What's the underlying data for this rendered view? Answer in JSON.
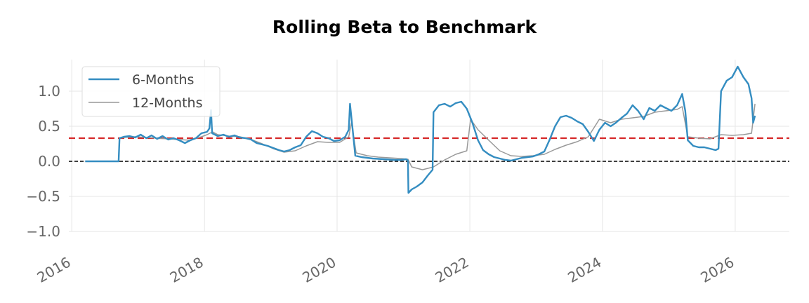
{
  "chart_data": {
    "type": "line",
    "title": "Rolling Beta to Benchmark",
    "xlabel": "",
    "ylabel": "",
    "x_axis": {
      "kind": "date",
      "range": [
        "2015-12-16",
        "2026-10-26"
      ],
      "ticks": [
        "2016",
        "2018",
        "2020",
        "2022",
        "2024",
        "2026"
      ]
    },
    "y_axis": {
      "range": [
        -1.0,
        1.45
      ],
      "ticks": [
        "1.0",
        "0.5",
        "0.0",
        "−0.5",
        "−1.0"
      ],
      "tick_values": [
        1.0,
        0.5,
        0.0,
        -0.5,
        -1.0
      ]
    },
    "grid": true,
    "legend_position": "upper-left",
    "reference_lines": [
      {
        "y": 0.33,
        "style": "dashed",
        "color": "#d62728"
      },
      {
        "y": 0.0,
        "style": "dashed",
        "color": "#000000"
      }
    ],
    "series": [
      {
        "name": "6-Months",
        "color": "#348dc1",
        "points": [
          [
            "2016-03-15",
            0
          ],
          [
            "2016-09-15",
            0
          ],
          [
            "2016-09-20",
            0.33
          ],
          [
            "2016-10-15",
            0.35
          ],
          [
            "2016-11-15",
            0.36
          ],
          [
            "2016-12-15",
            0.34
          ],
          [
            "2017-01-15",
            0.38
          ],
          [
            "2017-02-15",
            0.33
          ],
          [
            "2017-03-15",
            0.37
          ],
          [
            "2017-04-15",
            0.32
          ],
          [
            "2017-05-15",
            0.36
          ],
          [
            "2017-06-15",
            0.31
          ],
          [
            "2017-07-15",
            0.33
          ],
          [
            "2017-08-15",
            0.3
          ],
          [
            "2017-09-15",
            0.26
          ],
          [
            "2017-10-15",
            0.3
          ],
          [
            "2017-11-15",
            0.33
          ],
          [
            "2017-12-15",
            0.4
          ],
          [
            "2018-01-15",
            0.42
          ],
          [
            "2018-01-28",
            0.47
          ],
          [
            "2018-02-06",
            0.73
          ],
          [
            "2018-02-12",
            0.4
          ],
          [
            "2018-03-15",
            0.36
          ],
          [
            "2018-04-15",
            0.38
          ],
          [
            "2018-05-15",
            0.35
          ],
          [
            "2018-06-15",
            0.37
          ],
          [
            "2018-07-15",
            0.34
          ],
          [
            "2018-08-15",
            0.33
          ],
          [
            "2018-09-15",
            0.31
          ],
          [
            "2018-10-15",
            0.26
          ],
          [
            "2018-11-15",
            0.24
          ],
          [
            "2018-12-15",
            0.22
          ],
          [
            "2019-01-15",
            0.19
          ],
          [
            "2019-02-15",
            0.16
          ],
          [
            "2019-03-15",
            0.14
          ],
          [
            "2019-04-15",
            0.16
          ],
          [
            "2019-05-15",
            0.2
          ],
          [
            "2019-06-15",
            0.23
          ],
          [
            "2019-07-15",
            0.35
          ],
          [
            "2019-08-15",
            0.43
          ],
          [
            "2019-09-15",
            0.4
          ],
          [
            "2019-10-15",
            0.35
          ],
          [
            "2019-11-15",
            0.33
          ],
          [
            "2019-12-15",
            0.29
          ],
          [
            "2020-01-15",
            0.3
          ],
          [
            "2020-02-15",
            0.35
          ],
          [
            "2020-03-05",
            0.45
          ],
          [
            "2020-03-12",
            0.82
          ],
          [
            "2020-03-25",
            0.5
          ],
          [
            "2020-04-10",
            0.08
          ],
          [
            "2020-05-15",
            0.06
          ],
          [
            "2020-07-15",
            0.04
          ],
          [
            "2020-09-15",
            0.03
          ],
          [
            "2020-11-15",
            0.02
          ],
          [
            "2020-12-15",
            0.02
          ],
          [
            "2021-01-15",
            0.03
          ],
          [
            "2021-01-25",
            0.01
          ],
          [
            "2021-01-28",
            -0.45
          ],
          [
            "2021-02-15",
            -0.4
          ],
          [
            "2021-03-15",
            -0.36
          ],
          [
            "2021-04-15",
            -0.3
          ],
          [
            "2021-05-15",
            -0.2
          ],
          [
            "2021-06-10",
            -0.12
          ],
          [
            "2021-06-15",
            0.7
          ],
          [
            "2021-07-15",
            0.8
          ],
          [
            "2021-08-15",
            0.82
          ],
          [
            "2021-09-15",
            0.78
          ],
          [
            "2021-10-15",
            0.83
          ],
          [
            "2021-11-15",
            0.85
          ],
          [
            "2021-12-15",
            0.75
          ],
          [
            "2022-01-15",
            0.55
          ],
          [
            "2022-02-15",
            0.3
          ],
          [
            "2022-03-15",
            0.16
          ],
          [
            "2022-04-15",
            0.1
          ],
          [
            "2022-05-15",
            0.06
          ],
          [
            "2022-06-15",
            0.04
          ],
          [
            "2022-07-15",
            0.02
          ],
          [
            "2022-08-15",
            0.01
          ],
          [
            "2022-09-15",
            0.03
          ],
          [
            "2022-10-15",
            0.05
          ],
          [
            "2022-11-15",
            0.06
          ],
          [
            "2022-12-15",
            0.07
          ],
          [
            "2023-01-15",
            0.1
          ],
          [
            "2023-02-15",
            0.14
          ],
          [
            "2023-03-15",
            0.3
          ],
          [
            "2023-04-15",
            0.5
          ],
          [
            "2023-05-15",
            0.63
          ],
          [
            "2023-06-15",
            0.65
          ],
          [
            "2023-07-15",
            0.62
          ],
          [
            "2023-08-15",
            0.57
          ],
          [
            "2023-09-15",
            0.53
          ],
          [
            "2023-10-15",
            0.42
          ],
          [
            "2023-11-15",
            0.29
          ],
          [
            "2023-12-15",
            0.45
          ],
          [
            "2024-01-15",
            0.55
          ],
          [
            "2024-02-15",
            0.5
          ],
          [
            "2024-03-15",
            0.55
          ],
          [
            "2024-04-15",
            0.62
          ],
          [
            "2024-05-15",
            0.68
          ],
          [
            "2024-06-15",
            0.8
          ],
          [
            "2024-07-15",
            0.72
          ],
          [
            "2024-08-15",
            0.6
          ],
          [
            "2024-09-15",
            0.76
          ],
          [
            "2024-10-15",
            0.72
          ],
          [
            "2024-11-15",
            0.8
          ],
          [
            "2024-12-15",
            0.76
          ],
          [
            "2025-01-15",
            0.72
          ],
          [
            "2025-02-15",
            0.8
          ],
          [
            "2025-03-15",
            0.96
          ],
          [
            "2025-04-01",
            0.72
          ],
          [
            "2025-04-15",
            0.3
          ],
          [
            "2025-05-15",
            0.22
          ],
          [
            "2025-06-15",
            0.2
          ],
          [
            "2025-07-15",
            0.2
          ],
          [
            "2025-08-15",
            0.18
          ],
          [
            "2025-09-15",
            0.16
          ],
          [
            "2025-10-01",
            0.18
          ],
          [
            "2025-10-15",
            1.0
          ],
          [
            "2025-11-15",
            1.15
          ],
          [
            "2025-12-15",
            1.2
          ],
          [
            "2026-01-15",
            1.35
          ],
          [
            "2026-02-15",
            1.2
          ],
          [
            "2026-03-15",
            1.1
          ],
          [
            "2026-04-01",
            0.9
          ],
          [
            "2026-04-10",
            0.55
          ],
          [
            "2026-04-20",
            0.65
          ]
        ]
      },
      {
        "name": "12-Months",
        "color": "#999999",
        "points": [
          [
            "2016-09-20",
            0.33
          ],
          [
            "2016-10-15",
            0.34
          ],
          [
            "2016-12-15",
            0.35
          ],
          [
            "2017-02-15",
            0.34
          ],
          [
            "2017-04-15",
            0.33
          ],
          [
            "2017-06-15",
            0.32
          ],
          [
            "2017-08-15",
            0.31
          ],
          [
            "2017-10-15",
            0.3
          ],
          [
            "2017-12-15",
            0.35
          ],
          [
            "2018-01-15",
            0.38
          ],
          [
            "2018-02-15",
            0.42
          ],
          [
            "2018-03-15",
            0.38
          ],
          [
            "2018-05-15",
            0.36
          ],
          [
            "2018-07-15",
            0.35
          ],
          [
            "2018-09-15",
            0.31
          ],
          [
            "2018-11-15",
            0.25
          ],
          [
            "2019-01-15",
            0.18
          ],
          [
            "2019-03-15",
            0.13
          ],
          [
            "2019-05-15",
            0.15
          ],
          [
            "2019-07-15",
            0.22
          ],
          [
            "2019-09-15",
            0.28
          ],
          [
            "2019-11-15",
            0.27
          ],
          [
            "2020-01-15",
            0.27
          ],
          [
            "2020-03-05",
            0.35
          ],
          [
            "2020-03-20",
            0.55
          ],
          [
            "2020-04-15",
            0.12
          ],
          [
            "2020-06-15",
            0.08
          ],
          [
            "2020-08-15",
            0.06
          ],
          [
            "2020-10-15",
            0.05
          ],
          [
            "2020-12-15",
            0.04
          ],
          [
            "2021-01-25",
            0.03
          ],
          [
            "2021-02-15",
            -0.08
          ],
          [
            "2021-04-15",
            -0.12
          ],
          [
            "2021-06-15",
            -0.08
          ],
          [
            "2021-08-15",
            0.02
          ],
          [
            "2021-10-15",
            0.1
          ],
          [
            "2021-12-15",
            0.15
          ],
          [
            "2022-01-05",
            0.6
          ],
          [
            "2022-02-15",
            0.45
          ],
          [
            "2022-04-15",
            0.3
          ],
          [
            "2022-06-15",
            0.15
          ],
          [
            "2022-08-15",
            0.08
          ],
          [
            "2022-10-15",
            0.07
          ],
          [
            "2022-12-15",
            0.08
          ],
          [
            "2023-02-15",
            0.1
          ],
          [
            "2023-04-15",
            0.17
          ],
          [
            "2023-06-15",
            0.23
          ],
          [
            "2023-08-15",
            0.28
          ],
          [
            "2023-10-15",
            0.35
          ],
          [
            "2023-12-15",
            0.6
          ],
          [
            "2024-02-15",
            0.55
          ],
          [
            "2024-04-15",
            0.6
          ],
          [
            "2024-06-15",
            0.62
          ],
          [
            "2024-08-15",
            0.64
          ],
          [
            "2024-10-15",
            0.7
          ],
          [
            "2024-12-15",
            0.72
          ],
          [
            "2025-02-15",
            0.74
          ],
          [
            "2025-03-15",
            0.78
          ],
          [
            "2025-04-15",
            0.35
          ],
          [
            "2025-06-15",
            0.33
          ],
          [
            "2025-08-15",
            0.32
          ],
          [
            "2025-10-15",
            0.38
          ],
          [
            "2025-12-15",
            0.37
          ],
          [
            "2026-02-15",
            0.38
          ],
          [
            "2026-04-01",
            0.4
          ],
          [
            "2026-04-10",
            0.6
          ],
          [
            "2026-04-20",
            0.82
          ]
        ]
      }
    ]
  }
}
